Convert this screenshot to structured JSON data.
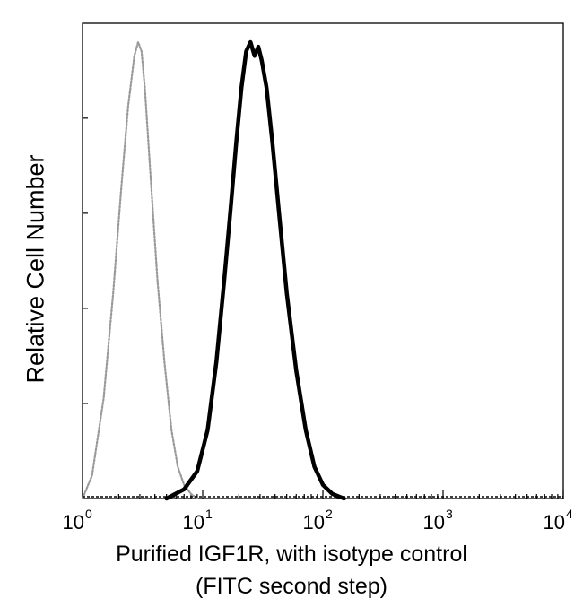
{
  "chart_data": {
    "type": "line",
    "xscale": "log",
    "xlim": [
      1,
      10000
    ],
    "ylim": [
      0,
      1
    ],
    "grid": false,
    "xlabel_line1": "Purified IGF1R, with isotype control",
    "xlabel_line2": "(FITC second step)",
    "ylabel": "Relative Cell Number",
    "x_ticks": [
      {
        "value": 1,
        "base": "10",
        "exp": "0"
      },
      {
        "value": 10,
        "base": "10",
        "exp": "1"
      },
      {
        "value": 100,
        "base": "10",
        "exp": "2"
      },
      {
        "value": 1000,
        "base": "10",
        "exp": "3"
      },
      {
        "value": 10000,
        "base": "10",
        "exp": "4"
      }
    ],
    "series": [
      {
        "style": "isotype",
        "color": "#9a9a9a",
        "x": [
          1.0,
          1.2,
          1.5,
          1.8,
          2.1,
          2.4,
          2.7,
          2.9,
          3.1,
          3.3,
          3.7,
          4.2,
          4.8,
          5.5,
          6.2,
          7.0,
          8.0,
          9.0
        ],
        "y": [
          0.0,
          0.05,
          0.22,
          0.45,
          0.68,
          0.86,
          0.97,
          1.0,
          0.98,
          0.9,
          0.7,
          0.48,
          0.3,
          0.15,
          0.07,
          0.03,
          0.01,
          0.0
        ]
      },
      {
        "style": "antibody",
        "color": "#000000",
        "x": [
          5.0,
          7.0,
          9.0,
          11.0,
          13.0,
          15.0,
          17.0,
          19.0,
          21.0,
          23.0,
          25.0,
          27.0,
          29.0,
          31.0,
          34.0,
          38.0,
          43.0,
          50.0,
          60.0,
          72.0,
          85.0,
          100.0,
          120.0,
          150.0
        ],
        "y": [
          0.0,
          0.02,
          0.06,
          0.15,
          0.3,
          0.47,
          0.63,
          0.78,
          0.9,
          0.98,
          1.0,
          0.97,
          0.99,
          0.96,
          0.9,
          0.78,
          0.63,
          0.45,
          0.28,
          0.15,
          0.07,
          0.03,
          0.01,
          0.0
        ]
      }
    ]
  }
}
